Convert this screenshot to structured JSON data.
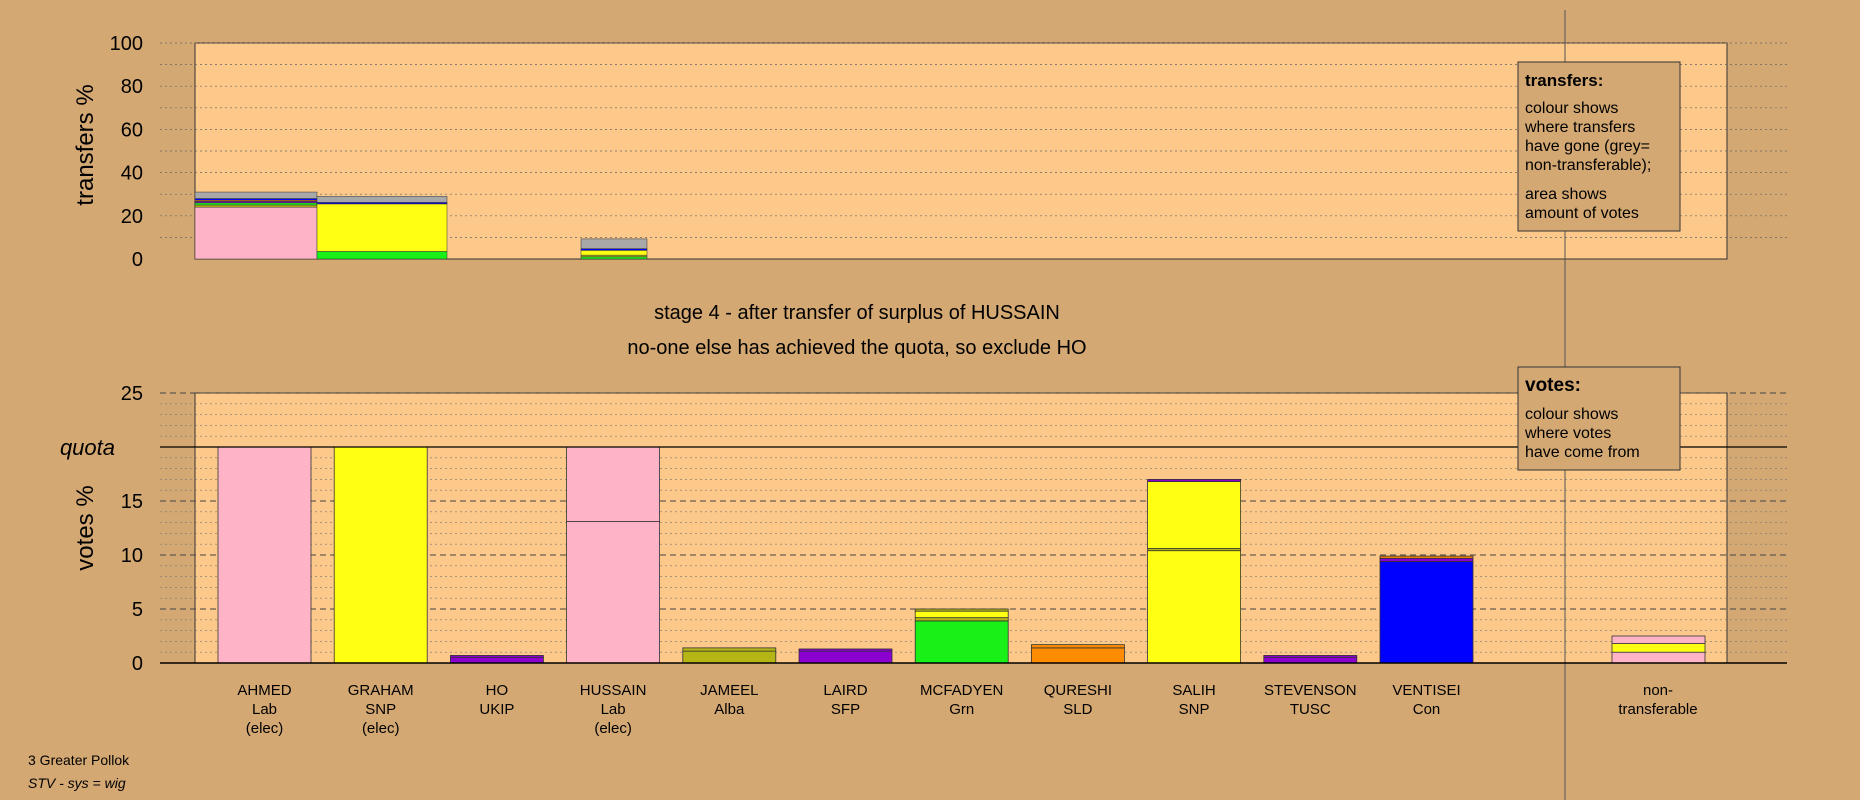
{
  "colors": {
    "background": "#d4a873",
    "plot_area": "#fdc98a",
    "box": "#d4a873",
    "Lab": "#ffb3c6",
    "SNP": "#ffff14",
    "UKIP": "#8b00d0",
    "Alba": "#b5b515",
    "SFP": "#8b00d0",
    "Grn": "#18f018",
    "SLD": "#ff8c00",
    "TUSC": "#8b00d0",
    "Con": "#0000ff",
    "nontransferable": "#a8a8a8"
  },
  "transfers_box": {
    "title": "transfers:",
    "lines1": [
      "colour shows",
      "where transfers",
      "have gone (grey=",
      "non-transferable);"
    ],
    "lines2": [
      "area shows",
      "amount of votes"
    ]
  },
  "votes_box": {
    "title": "votes:",
    "lines": [
      "colour shows",
      "where votes",
      "have come from"
    ]
  },
  "stage_text": {
    "line1": "stage 4 - after transfer of surplus of HUSSAIN",
    "line2": "no-one else has achieved the quota, so exclude HO"
  },
  "footer": {
    "constituency": "3 Greater Pollok",
    "system": "STV - sys = wig"
  },
  "chart_data": [
    {
      "type": "bar",
      "name": "transfers",
      "ylabel": "transfers %",
      "ylim": [
        0,
        100
      ],
      "yticks": [
        0,
        20,
        40,
        60,
        80,
        100
      ],
      "grid": true,
      "bars": [
        {
          "candidate": "AHMED",
          "segments": [
            {
              "party": "Lab",
              "value": 24.0
            },
            {
              "party": "Alba",
              "value": 1.0
            },
            {
              "party": "Grn",
              "value": 1.0
            },
            {
              "party": "UKIP",
              "value": 0.7
            },
            {
              "party": "SLD",
              "value": 0.5
            },
            {
              "party": "Con",
              "value": 0.8
            },
            {
              "party": "nontransferable",
              "value": 3.0
            }
          ]
        },
        {
          "candidate": "GRAHAM",
          "segments": [
            {
              "party": "Grn",
              "value": 3.5
            },
            {
              "party": "SNP",
              "value": 22.0
            },
            {
              "party": "Con",
              "value": 0.7
            },
            {
              "party": "nontransferable",
              "value": 2.8
            }
          ]
        },
        {
          "candidate": "HUSSAIN",
          "segments": [
            {
              "party": "Grn",
              "value": 1.0
            },
            {
              "party": "Alba",
              "value": 0.8
            },
            {
              "party": "SNP",
              "value": 2.2
            },
            {
              "party": "Con",
              "value": 0.8
            },
            {
              "party": "nontransferable",
              "value": 4.5
            }
          ]
        }
      ]
    },
    {
      "type": "bar",
      "name": "votes",
      "ylabel": "votes %",
      "ylim": [
        0,
        25
      ],
      "yticks": [
        0,
        5,
        10,
        15,
        20,
        25
      ],
      "quota": 20,
      "quota_label": "quota",
      "grid": true,
      "candidates": [
        {
          "name": "AHMED",
          "party": "Lab",
          "note": "(elec)",
          "segments": [
            {
              "party": "Lab",
              "value": 20.0
            }
          ]
        },
        {
          "name": "GRAHAM",
          "party": "SNP",
          "note": "(elec)",
          "segments": [
            {
              "party": "SNP",
              "value": 20.0
            }
          ]
        },
        {
          "name": "HO",
          "party": "UKIP",
          "note": "",
          "segments": [
            {
              "party": "UKIP",
              "value": 0.5
            },
            {
              "party": "UKIP",
              "value": 0.2
            }
          ]
        },
        {
          "name": "HUSSAIN",
          "party": "Lab",
          "note": "(elec)",
          "segments": [
            {
              "party": "Lab",
              "value": 13.1
            },
            {
              "party": "Lab",
              "value": 6.9
            }
          ]
        },
        {
          "name": "JAMEEL",
          "party": "Alba",
          "note": "",
          "segments": [
            {
              "party": "Alba",
              "value": 1.1
            },
            {
              "party": "Alba",
              "value": 0.3
            }
          ]
        },
        {
          "name": "LAIRD",
          "party": "SFP",
          "note": "",
          "segments": [
            {
              "party": "SFP",
              "value": 1.1
            },
            {
              "party": "SFP",
              "value": 0.2
            }
          ]
        },
        {
          "name": "MCFADYEN",
          "party": "Grn",
          "note": "",
          "segments": [
            {
              "party": "Grn",
              "value": 3.9
            },
            {
              "party": "Alba",
              "value": 0.3
            },
            {
              "party": "SNP",
              "value": 0.6
            },
            {
              "party": "Alba",
              "value": 0.2
            }
          ]
        },
        {
          "name": "QURESHI",
          "party": "SLD",
          "note": "",
          "segments": [
            {
              "party": "SLD",
              "value": 1.4
            },
            {
              "party": "SLD",
              "value": 0.3
            }
          ]
        },
        {
          "name": "SALIH",
          "party": "SNP",
          "note": "",
          "segments": [
            {
              "party": "SNP",
              "value": 10.4
            },
            {
              "party": "Alba",
              "value": 0.2
            },
            {
              "party": "SNP",
              "value": 6.2
            },
            {
              "party": "UKIP",
              "value": 0.2
            }
          ]
        },
        {
          "name": "STEVENSON",
          "party": "TUSC",
          "note": "",
          "segments": [
            {
              "party": "TUSC",
              "value": 0.5
            },
            {
              "party": "TUSC",
              "value": 0.2
            }
          ]
        },
        {
          "name": "VENTISEI",
          "party": "Con",
          "note": "",
          "segments": [
            {
              "party": "Con",
              "value": 9.4
            },
            {
              "party": "UKIP",
              "value": 0.3
            },
            {
              "party": "SLD",
              "value": 0.2
            }
          ]
        }
      ],
      "nontransferable": {
        "label1": "non-",
        "label2": "transferable",
        "segments": [
          {
            "party": "Lab",
            "value": 1.0
          },
          {
            "party": "SNP",
            "value": 0.8
          },
          {
            "party": "Lab",
            "value": 0.7
          }
        ]
      }
    }
  ]
}
